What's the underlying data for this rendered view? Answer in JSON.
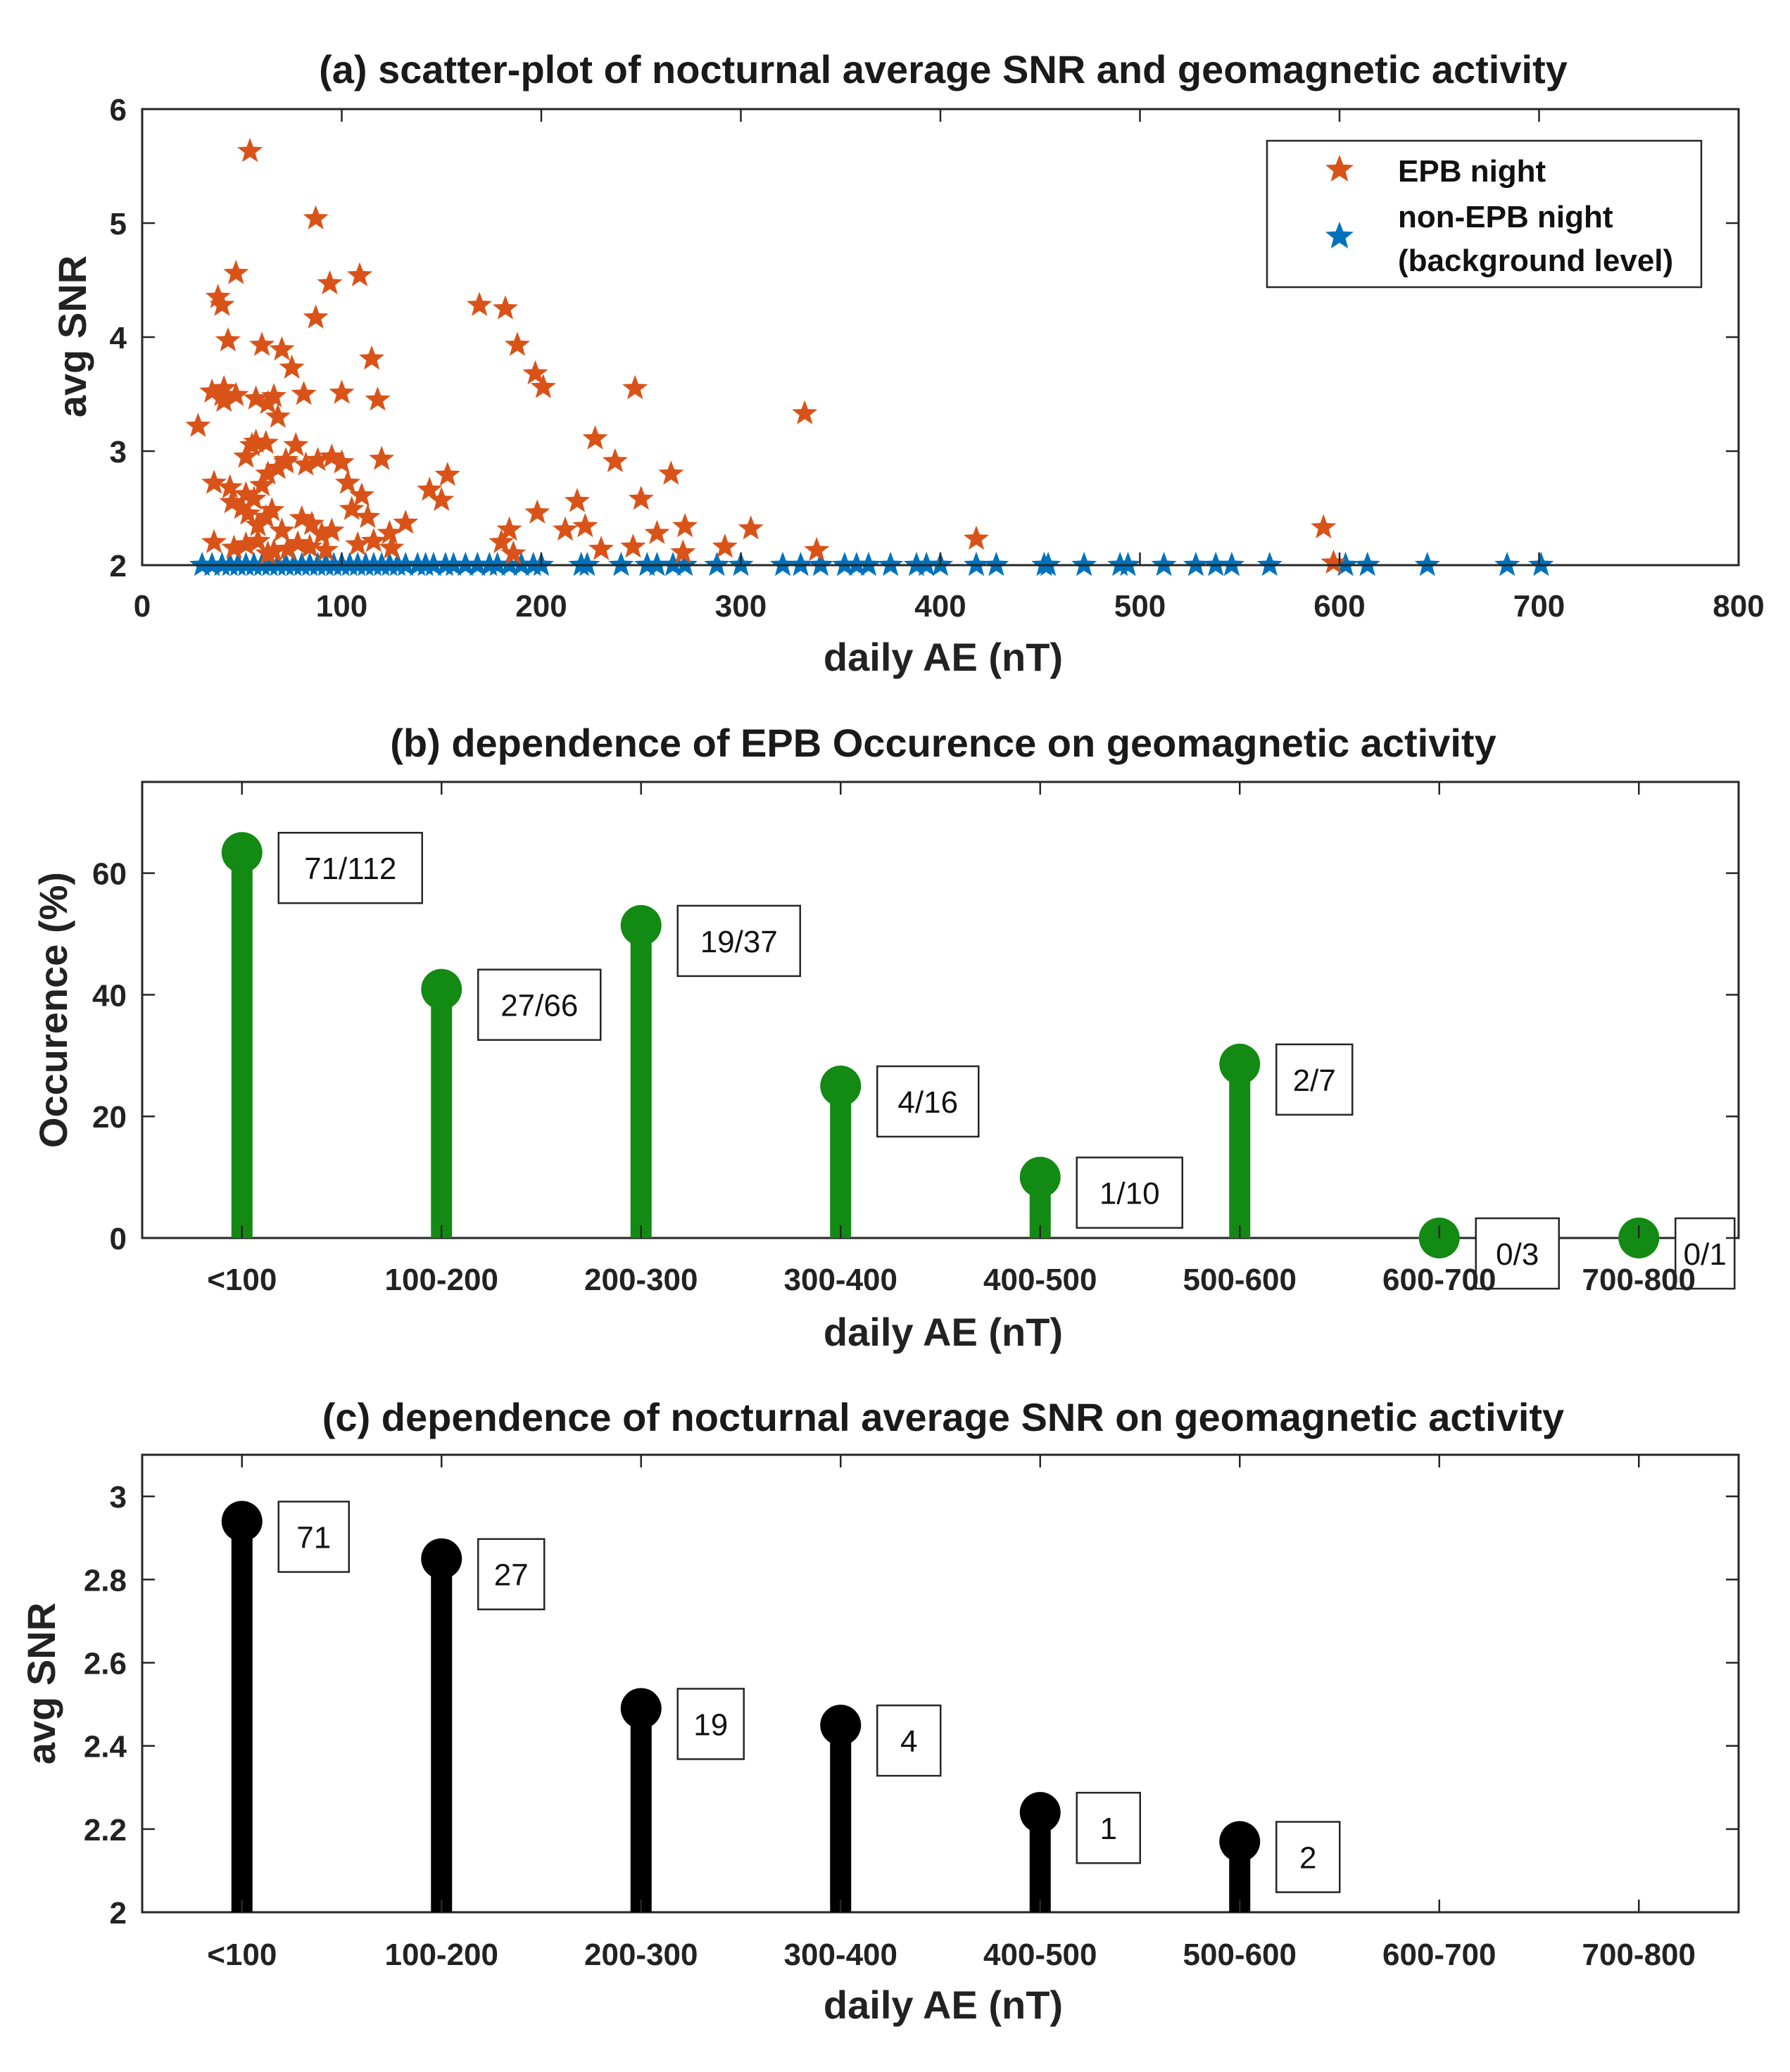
{
  "colors": {
    "epb": "#d95319",
    "nonepb": "#0072bd",
    "occurrence": "#138a13",
    "snr": "#000000",
    "axis": "#262626"
  },
  "chart_data": [
    {
      "type": "scatter",
      "title": "(a) scatter-plot of nocturnal average SNR and geomagnetic activity",
      "xlabel": "daily AE (nT)",
      "ylabel": "avg SNR",
      "xlim": [
        0,
        800
      ],
      "ylim": [
        2,
        6
      ],
      "xticks": [
        "0",
        "100",
        "200",
        "300",
        "400",
        "500",
        "600",
        "700",
        "800"
      ],
      "yticks": [
        "2",
        "3",
        "4",
        "5",
        "6"
      ],
      "legend_position": "top-right",
      "series": [
        {
          "name": "EPB night",
          "x": [
            54,
            87,
            47,
            94,
            109,
            38,
            40,
            43,
            60,
            70,
            87,
            115,
            35,
            41,
            47,
            57,
            63,
            66,
            75,
            81,
            100,
            118,
            57,
            62,
            41,
            40,
            55,
            68,
            52,
            72,
            28,
            36,
            44,
            52,
            56,
            60,
            63,
            68,
            72,
            77,
            82,
            88,
            95,
            100,
            103,
            110,
            120,
            45,
            50,
            53,
            58,
            62,
            65,
            70,
            80,
            85,
            90,
            95,
            105,
            113,
            124,
            132,
            36,
            46,
            52,
            58,
            63,
            66,
            73,
            78,
            84,
            92,
            108,
            116,
            125,
            153,
            144,
            150,
            169,
            182,
            188,
            197,
            201,
            247,
            227,
            237,
            265,
            250,
            258,
            272,
            198,
            218,
            212,
            222,
            184,
            180,
            230,
            246,
            292,
            305,
            271,
            186,
            332,
            338,
            418,
            592,
            597
          ],
          "y": [
            5.63,
            5.04,
            4.56,
            4.47,
            4.54,
            4.35,
            4.28,
            3.97,
            3.93,
            3.89,
            4.17,
            3.81,
            3.52,
            3.55,
            3.49,
            3.46,
            3.42,
            3.48,
            3.73,
            3.5,
            3.51,
            3.45,
            3.08,
            3.07,
            3.44,
            3.49,
            3.05,
            3.3,
            2.95,
            2.9,
            3.22,
            2.72,
            2.68,
            2.62,
            2.58,
            2.7,
            2.8,
            2.85,
            2.92,
            3.05,
            2.88,
            2.92,
            2.95,
            2.9,
            2.72,
            2.61,
            2.93,
            2.55,
            2.5,
            2.45,
            2.35,
            2.42,
            2.48,
            2.3,
            2.41,
            2.36,
            2.27,
            2.3,
            2.49,
            2.42,
            2.28,
            2.37,
            2.2,
            2.15,
            2.18,
            2.21,
            2.1,
            2.12,
            2.14,
            2.19,
            2.16,
            2.13,
            2.18,
            2.21,
            2.15,
            2.79,
            2.66,
            2.57,
            4.28,
            4.25,
            3.93,
            3.68,
            3.56,
            3.55,
            3.11,
            2.91,
            2.8,
            2.58,
            2.28,
            2.34,
            2.46,
            2.56,
            2.31,
            2.34,
            2.31,
            2.2,
            2.14,
            2.16,
            2.16,
            2.32,
            2.11,
            2.1,
            3.33,
            2.13,
            2.23,
            2.33,
            2.02
          ]
        },
        {
          "name": "non-EPB night",
          "name_line2": "(background level)",
          "x": [
            30,
            35,
            40,
            44,
            48,
            52,
            56,
            60,
            64,
            68,
            72,
            76,
            80,
            84,
            88,
            92,
            96,
            100,
            104,
            108,
            112,
            116,
            120,
            124,
            128,
            132,
            138,
            142,
            146,
            152,
            156,
            162,
            168,
            174,
            178,
            184,
            190,
            196,
            200,
            220,
            223,
            240,
            253,
            258,
            266,
            272,
            288,
            300,
            321,
            330,
            340,
            352,
            358,
            364,
            375,
            388,
            393,
            400,
            418,
            428,
            452,
            454,
            472,
            490,
            494,
            512,
            528,
            538,
            546,
            565,
            603,
            614,
            644,
            684,
            701
          ],
          "y": [
            2,
            2,
            2,
            2,
            2,
            2,
            2,
            2,
            2,
            2,
            2,
            2,
            2,
            2,
            2,
            2,
            2,
            2,
            2,
            2,
            2,
            2,
            2,
            2,
            2,
            2,
            2,
            2,
            2,
            2,
            2,
            2,
            2,
            2,
            2,
            2,
            2,
            2,
            2,
            2,
            2,
            2,
            2,
            2,
            2,
            2,
            2,
            2,
            2,
            2,
            2,
            2,
            2,
            2,
            2,
            2,
            2,
            2,
            2,
            2,
            2,
            2,
            2,
            2,
            2,
            2,
            2,
            2,
            2,
            2,
            2,
            2,
            2,
            2,
            2
          ]
        }
      ]
    },
    {
      "type": "bar",
      "style": "stem",
      "title": "(b) dependence of EPB Occurence on geomagnetic activity",
      "xlabel": "daily AE (nT)",
      "ylabel": "Occurence (%)",
      "ylim": [
        0,
        75
      ],
      "yticks": [
        "0",
        "20",
        "40",
        "60"
      ],
      "categories": [
        "<100",
        "100-200",
        "200-300",
        "300-400",
        "400-500",
        "500-600",
        "600-700",
        "700-800"
      ],
      "values": [
        63.4,
        40.9,
        51.4,
        25.0,
        10.0,
        28.6,
        0,
        0
      ],
      "labels": [
        "71/112",
        "27/66",
        "19/37",
        "4/16",
        "1/10",
        "2/7",
        "0/3",
        "0/1"
      ]
    },
    {
      "type": "bar",
      "style": "stem",
      "title": "(c) dependence of nocturnal average SNR on geomagnetic activity",
      "xlabel": "daily AE (nT)",
      "ylabel": "avg SNR",
      "ylim": [
        2,
        3.1
      ],
      "yticks": [
        "2",
        "2.2",
        "2.4",
        "2.6",
        "2.8",
        "3"
      ],
      "categories": [
        "<100",
        "100-200",
        "200-300",
        "300-400",
        "400-500",
        "500-600",
        "600-700",
        "700-800"
      ],
      "values": [
        2.94,
        2.85,
        2.49,
        2.45,
        2.24,
        2.17,
        null,
        null
      ],
      "labels": [
        "71",
        "27",
        "19",
        "4",
        "1",
        "2",
        "",
        ""
      ]
    }
  ]
}
